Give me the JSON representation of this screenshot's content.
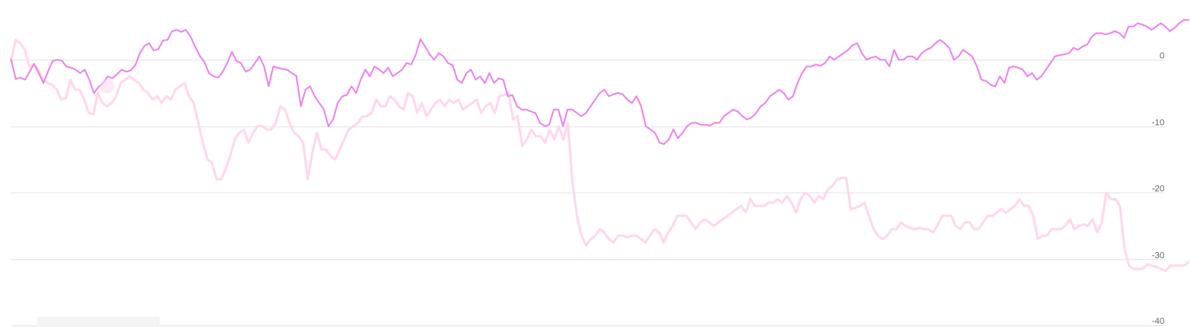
{
  "chart_data": {
    "type": "line",
    "title": "",
    "xlabel": "",
    "ylabel": "",
    "ylim": [
      -40,
      9
    ],
    "yticks": [
      0,
      -10,
      -20,
      -30,
      -40
    ],
    "yaxis_position": "right",
    "grid": true,
    "legend": "none",
    "series": [
      {
        "color": "#ee82ee",
        "values": [
          0.0,
          -2.9,
          -2.7,
          -3.0,
          -1.8,
          -0.6,
          -2.0,
          -3.5,
          -1.8,
          -0.2,
          0.0,
          -0.1,
          -1.0,
          -1.2,
          -1.5,
          -2.0,
          -1.5,
          -3.0,
          -5.0,
          -4.1,
          -3.5,
          -2.5,
          -2.8,
          -2.2,
          -1.5,
          -1.8,
          -1.6,
          -0.8,
          1.0,
          2.1,
          2.5,
          1.4,
          1.6,
          2.9,
          3.0,
          4.3,
          4.5,
          4.2,
          4.5,
          3.5,
          2.0,
          0.6,
          -0.3,
          -2.0,
          -2.5,
          -2.7,
          -1.8,
          -0.5,
          1.2,
          -0.2,
          -0.5,
          -1.8,
          -1.5,
          -0.5,
          0.5,
          -1.0,
          -4.0,
          -1.0,
          -1.2,
          -1.4,
          -1.5,
          -2.0,
          -2.4,
          -7.0,
          -4.5,
          -4.0,
          -5.5,
          -6.5,
          -7.5,
          -10.0,
          -9.0,
          -6.5,
          -5.5,
          -5.3,
          -4.0,
          -5.0,
          -3.0,
          -1.5,
          -2.5,
          -1.0,
          -1.5,
          -2.0,
          -1.2,
          -2.5,
          -2.0,
          -1.5,
          -0.5,
          -0.7,
          0.8,
          3.1,
          2.0,
          0.8,
          0.0,
          1.0,
          0.5,
          -0.5,
          -0.8,
          -3.0,
          -3.5,
          -2.0,
          -1.5,
          -3.0,
          -2.5,
          -3.5,
          -2.0,
          -3.5,
          -2.8,
          -3.0,
          -5.5,
          -5.3,
          -7.0,
          -7.5,
          -7.5,
          -7.8,
          -8.0,
          -9.5,
          -10.0,
          -9.8,
          -7.5,
          -7.5,
          -10.0,
          -7.5,
          -7.5,
          -8.0,
          -8.5,
          -8.0,
          -7.0,
          -6.0,
          -5.0,
          -4.5,
          -5.5,
          -5.2,
          -5.0,
          -5.2,
          -6.0,
          -6.5,
          -5.5,
          -7.0,
          -10.0,
          -10.5,
          -11.0,
          -12.5,
          -12.7,
          -12.0,
          -10.5,
          -11.8,
          -11.0,
          -10.0,
          -9.5,
          -9.5,
          -9.8,
          -9.8,
          -9.9,
          -9.5,
          -9.5,
          -8.5,
          -8.0,
          -7.5,
          -7.8,
          -8.5,
          -9.0,
          -8.7,
          -8.0,
          -7.0,
          -6.5,
          -5.5,
          -5.0,
          -4.5,
          -5.0,
          -6.0,
          -5.5,
          -3.5,
          -2.0,
          -1.0,
          -1.0,
          -0.7,
          -0.9,
          -0.5,
          0.5,
          0.0,
          0.5,
          1.0,
          1.5,
          2.2,
          2.5,
          1.0,
          0.0,
          0.3,
          0.5,
          0.0,
          0.0,
          -1.0,
          1.5,
          0.0,
          0.0,
          0.5,
          0.5,
          0.0,
          1.0,
          1.5,
          1.8,
          2.5,
          3.0,
          2.5,
          1.8,
          0.0,
          0.5,
          1.5,
          1.0,
          0.5,
          -1.0,
          -3.0,
          -3.2,
          -3.8,
          -4.0,
          -2.5,
          -3.5,
          -1.2,
          -1.0,
          -1.2,
          -1.5,
          -2.5,
          -2.0,
          -3.0,
          -2.5,
          -1.5,
          -0.5,
          0.5,
          0.7,
          0.8,
          1.0,
          1.8,
          1.5,
          2.0,
          2.3,
          3.5,
          4.0,
          4.0,
          3.8,
          4.0,
          4.3,
          4.0,
          3.3,
          5.0,
          5.0,
          5.5,
          5.3,
          5.0,
          4.5,
          5.0,
          5.5,
          5.0,
          4.3,
          4.8,
          5.5,
          6.0,
          6.0
        ]
      },
      {
        "color": "#ffd7ec",
        "values": [
          0.0,
          3.0,
          2.5,
          1.5,
          -1.0,
          -0.8,
          -1.5,
          -3.0,
          -3.5,
          -3.8,
          -4.5,
          -6.0,
          -5.8,
          -3.0,
          -4.5,
          -4.5,
          -6.0,
          -8.0,
          -8.2,
          -5.0,
          -6.5,
          -7.0,
          -6.5,
          -5.5,
          -3.5,
          -3.0,
          -2.5,
          -3.0,
          -3.5,
          -4.5,
          -5.0,
          -6.0,
          -5.5,
          -6.5,
          -5.5,
          -6.0,
          -4.5,
          -4.0,
          -3.5,
          -5.5,
          -6.5,
          -9.5,
          -12.5,
          -15.0,
          -15.5,
          -18.0,
          -18.0,
          -16.5,
          -14.5,
          -12.0,
          -11.0,
          -10.5,
          -12.5,
          -11.0,
          -10.0,
          -10.0,
          -10.5,
          -10.5,
          -9.5,
          -7.0,
          -7.5,
          -9.5,
          -11.0,
          -11.5,
          -12.5,
          -18.0,
          -14.0,
          -11.0,
          -13.5,
          -13.5,
          -14.5,
          -15.0,
          -13.5,
          -12.0,
          -10.5,
          -10.0,
          -9.5,
          -8.5,
          -8.5,
          -8.0,
          -6.0,
          -7.0,
          -7.0,
          -5.5,
          -6.0,
          -7.0,
          -7.5,
          -5.0,
          -5.5,
          -8.0,
          -6.5,
          -8.5,
          -7.5,
          -6.5,
          -6.0,
          -7.0,
          -6.0,
          -6.5,
          -6.0,
          -7.5,
          -7.0,
          -6.5,
          -6.0,
          -8.0,
          -7.0,
          -6.5,
          -8.0,
          -5.5,
          -5.3,
          -5.0,
          -9.0,
          -8.5,
          -13.0,
          -12.0,
          -10.5,
          -11.5,
          -11.5,
          -12.5,
          -10.5,
          -12.0,
          -10.0,
          -12.0,
          -9.5,
          -18.5,
          -23.5,
          -26.5,
          -28.0,
          -27.0,
          -26.5,
          -25.5,
          -26.0,
          -27.0,
          -27.5,
          -26.5,
          -26.5,
          -26.7,
          -26.5,
          -26.5,
          -27.0,
          -27.5,
          -26.5,
          -25.5,
          -26.0,
          -27.5,
          -26.0,
          -25.0,
          -23.5,
          -23.5,
          -23.5,
          -24.5,
          -25.5,
          -24.5,
          -24.0,
          -24.5,
          -25.0,
          -24.5,
          -24.0,
          -23.5,
          -23.0,
          -22.5,
          -22.0,
          -23.0,
          -21.0,
          -22.0,
          -22.0,
          -22.0,
          -21.5,
          -21.5,
          -21.0,
          -21.5,
          -20.5,
          -21.5,
          -23.0,
          -21.0,
          -20.0,
          -20.5,
          -21.5,
          -20.5,
          -21.0,
          -19.5,
          -19.0,
          -18.0,
          -17.8,
          -17.8,
          -22.5,
          -22.3,
          -22.0,
          -21.5,
          -23.5,
          -25.5,
          -26.5,
          -27.0,
          -26.5,
          -25.5,
          -25.5,
          -24.5,
          -25.0,
          -25.3,
          -25.5,
          -25.3,
          -25.5,
          -25.5,
          -26.0,
          -25.0,
          -23.5,
          -23.5,
          -23.5,
          -25.0,
          -25.5,
          -24.5,
          -24.5,
          -25.5,
          -25.5,
          -24.5,
          -23.5,
          -23.5,
          -23.0,
          -22.5,
          -23.0,
          -22.5,
          -22.0,
          -21.0,
          -22.0,
          -22.0,
          -23.5,
          -27.0,
          -26.5,
          -26.5,
          -25.5,
          -25.5,
          -25.5,
          -25.0,
          -24.0,
          -25.5,
          -25.0,
          -24.8,
          -25.0,
          -24.0,
          -26.0,
          -24.5,
          -20.0,
          -21.0,
          -21.0,
          -22.0,
          -28.5,
          -31.0,
          -31.5,
          -31.5,
          -31.5,
          -30.8,
          -31.0,
          -31.2,
          -31.5,
          -31.8,
          -31.0,
          -31.0,
          -31.0,
          -31.0,
          -30.5
        ]
      }
    ]
  }
}
